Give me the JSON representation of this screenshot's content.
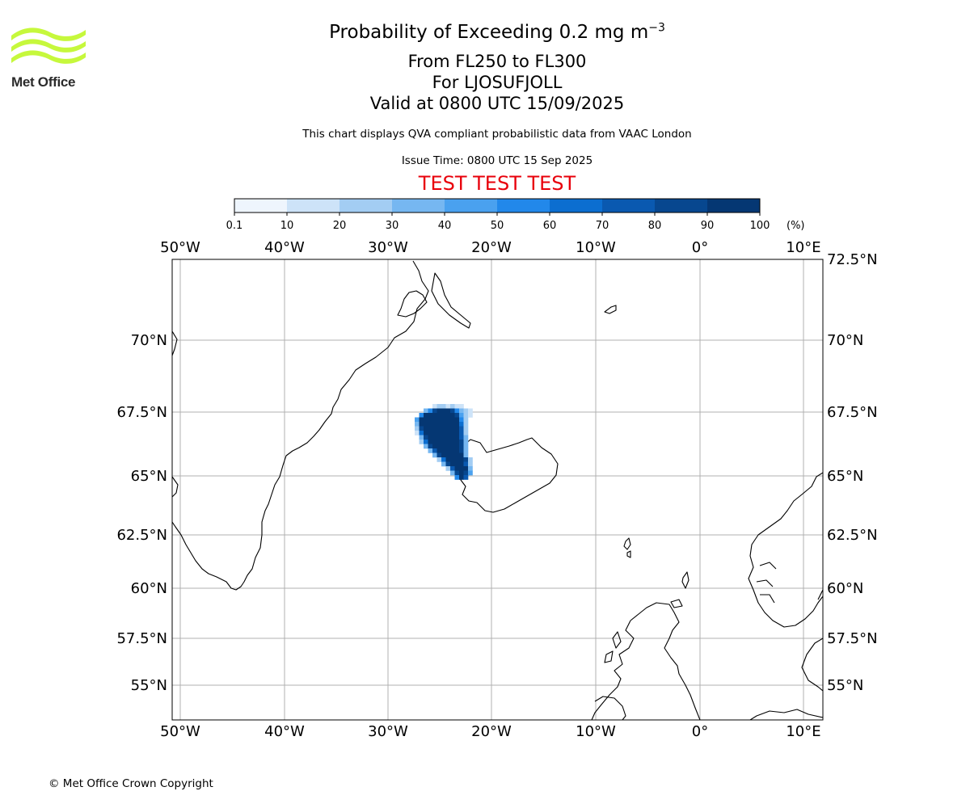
{
  "header": {
    "title_main": "Probability of Exceeding 0.2 mg m",
    "title_sup": "−3",
    "title_levels": "From FL250 to FL300",
    "title_volcano": "For LJOSUFJOLL",
    "title_valid": "Valid at 0800 UTC 15/09/2025",
    "subtitle": "This chart displays QVA compliant probabilistic data from VAAC London",
    "issue_time": "Issue Time: 0800 UTC 15 Sep 2025",
    "test_banner": "TEST TEST TEST"
  },
  "logo": {
    "text": "Met Office",
    "color": "#c6f83c"
  },
  "colorbar": {
    "unit": "(%)",
    "ticks": [
      "0.1",
      "10",
      "20",
      "30",
      "40",
      "50",
      "60",
      "70",
      "80",
      "90",
      "100"
    ],
    "colors": [
      "#eef5fd",
      "#cde3f8",
      "#a3cdf3",
      "#76b7f1",
      "#4aa1ef",
      "#2288ea",
      "#0c6ed0",
      "#0a59b0",
      "#07478f",
      "#053773"
    ]
  },
  "map": {
    "lon_labels": [
      "50°W",
      "40°W",
      "30°W",
      "20°W",
      "10°W",
      "0°",
      "10°E"
    ],
    "lat_labels": [
      "70°N",
      "67.5°N",
      "65°N",
      "62.5°N",
      "60°N",
      "57.5°N",
      "55°N"
    ],
    "top_right_lat_label": "72.5°N",
    "grid_color": "#b0b0b0",
    "coast_color": "#000000"
  },
  "footer": {
    "copyright": "© Met Office Crown Copyright"
  }
}
